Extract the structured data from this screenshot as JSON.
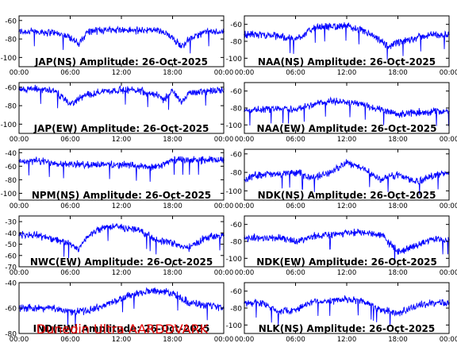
{
  "footer": "Dunedin Ultra AARDDVARK",
  "colors": {
    "trace": "#0000ff",
    "axis": "#000000",
    "footer": "#e00000",
    "background": "#ffffff"
  },
  "chart_data": [
    {
      "type": "line",
      "title": "JAP(NS) Amplitude: 26-Oct-2025",
      "ylim": [
        -110,
        -55
      ],
      "yticks": [
        -100,
        -80,
        -60
      ],
      "xticks": [
        "00:00",
        "06:00",
        "12:00",
        "18:00",
        "00:00"
      ],
      "xrange_hours": [
        0,
        24
      ],
      "series": [
        {
          "x": [
            0,
            2,
            4,
            6,
            7,
            8,
            10,
            12,
            14,
            16,
            18,
            19,
            20,
            22,
            24
          ],
          "y": [
            -72,
            -72,
            -73,
            -78,
            -86,
            -72,
            -70,
            -70,
            -71,
            -70,
            -78,
            -88,
            -80,
            -72,
            -72
          ]
        }
      ]
    },
    {
      "type": "line",
      "title": "NAA(NS) Amplitude: 26-Oct-2025",
      "ylim": [
        -110,
        -50
      ],
      "yticks": [
        -100,
        -80,
        -60
      ],
      "xticks": [
        "00:00",
        "06:00",
        "12:00",
        "18:00",
        "00:00"
      ],
      "xrange_hours": [
        0,
        24
      ],
      "series": [
        {
          "x": [
            0,
            2,
            4,
            6,
            8,
            10,
            12,
            14,
            16,
            17,
            18,
            20,
            22,
            24
          ],
          "y": [
            -72,
            -72,
            -74,
            -78,
            -65,
            -62,
            -62,
            -68,
            -80,
            -86,
            -82,
            -76,
            -72,
            -72
          ]
        }
      ]
    },
    {
      "type": "line",
      "title": "JAP(EW) Amplitude: 26-Oct-2025",
      "ylim": [
        -110,
        -55
      ],
      "yticks": [
        -100,
        -80,
        -60
      ],
      "xticks": [
        "00:00",
        "06:00",
        "12:00",
        "18:00",
        "00:00"
      ],
      "xrange_hours": [
        0,
        24
      ],
      "series": [
        {
          "x": [
            0,
            2,
            4,
            6,
            8,
            10,
            12,
            14,
            16,
            17,
            18,
            19,
            20,
            22,
            24
          ],
          "y": [
            -62,
            -62,
            -63,
            -78,
            -68,
            -64,
            -63,
            -63,
            -68,
            -74,
            -64,
            -76,
            -66,
            -64,
            -62
          ]
        }
      ]
    },
    {
      "type": "line",
      "title": "NAA(EW) Amplitude: 26-Oct-2025",
      "ylim": [
        -110,
        -50
      ],
      "yticks": [
        -100,
        -80,
        -60
      ],
      "xticks": [
        "00:00",
        "06:00",
        "12:00",
        "18:00",
        "00:00"
      ],
      "xrange_hours": [
        0,
        24
      ],
      "series": [
        {
          "x": [
            0,
            2,
            4,
            6,
            8,
            10,
            12,
            14,
            16,
            18,
            20,
            22,
            24
          ],
          "y": [
            -84,
            -82,
            -80,
            -82,
            -76,
            -72,
            -73,
            -76,
            -82,
            -88,
            -85,
            -84,
            -84
          ]
        }
      ]
    },
    {
      "type": "line",
      "title": "NPM(NS) Amplitude: 26-Oct-2025",
      "ylim": [
        -110,
        -35
      ],
      "yticks": [
        -100,
        -80,
        -60,
        -40
      ],
      "xticks": [
        "00:00",
        "06:00",
        "12:00",
        "18:00",
        "00:00"
      ],
      "xrange_hours": [
        0,
        24
      ],
      "series": [
        {
          "x": [
            0,
            2,
            4,
            6,
            8,
            10,
            12,
            14,
            16,
            17,
            18,
            20,
            22,
            24
          ],
          "y": [
            -52,
            -52,
            -55,
            -57,
            -58,
            -57,
            -58,
            -60,
            -62,
            -57,
            -51,
            -51,
            -51,
            -51
          ]
        }
      ]
    },
    {
      "type": "line",
      "title": "NDK(NS) Amplitude: 26-Oct-2025",
      "ylim": [
        -110,
        -55
      ],
      "yticks": [
        -100,
        -80,
        -60
      ],
      "xticks": [
        "00:00",
        "06:00",
        "12:00",
        "18:00",
        "00:00"
      ],
      "xrange_hours": [
        0,
        24
      ],
      "series": [
        {
          "x": [
            0,
            1,
            2,
            4,
            6,
            8,
            10,
            12,
            14,
            16,
            18,
            20,
            22,
            24
          ],
          "y": [
            -88,
            -84,
            -82,
            -82,
            -80,
            -86,
            -80,
            -70,
            -76,
            -88,
            -82,
            -90,
            -84,
            -80
          ]
        }
      ]
    },
    {
      "type": "line",
      "title": "NWC(EW) Amplitude: 26-Oct-2025",
      "ylim": [
        -70,
        -25
      ],
      "yticks": [
        -70,
        -60,
        -50,
        -40,
        -30
      ],
      "xticks": [
        "00:00",
        "06:00",
        "12:00",
        "18:00",
        "00:00"
      ],
      "xrange_hours": [
        0,
        24
      ],
      "series": [
        {
          "x": [
            0,
            2,
            4,
            6,
            7,
            8,
            10,
            12,
            14,
            16,
            18,
            19,
            20,
            22,
            24
          ],
          "y": [
            -42,
            -42,
            -45,
            -50,
            -55,
            -43,
            -34,
            -35,
            -37,
            -46,
            -49,
            -52,
            -53,
            -44,
            -42
          ]
        }
      ]
    },
    {
      "type": "line",
      "title": "NDK(EW) Amplitude: 26-Oct-2025",
      "ylim": [
        -110,
        -50
      ],
      "yticks": [
        -100,
        -80,
        -60
      ],
      "xticks": [
        "00:00",
        "06:00",
        "12:00",
        "18:00",
        "00:00"
      ],
      "xrange_hours": [
        0,
        24
      ],
      "series": [
        {
          "x": [
            0,
            2,
            4,
            6,
            8,
            10,
            12,
            14,
            16,
            18,
            20,
            22,
            24
          ],
          "y": [
            -76,
            -76,
            -76,
            -80,
            -74,
            -72,
            -70,
            -70,
            -72,
            -92,
            -86,
            -78,
            -78
          ]
        }
      ]
    },
    {
      "type": "line",
      "title": "IND(EW) Amplitude: 26-Oct-2025",
      "ylim": [
        -80,
        -40
      ],
      "yticks": [
        -80,
        -60,
        -40
      ],
      "xticks": [
        "00:00",
        "06:00",
        "12:00",
        "18:00",
        "00:00"
      ],
      "xrange_hours": [
        0,
        24
      ],
      "series": [
        {
          "x": [
            0,
            2,
            4,
            6,
            8,
            10,
            12,
            14,
            16,
            18,
            20,
            22,
            24
          ],
          "y": [
            -60,
            -60,
            -60,
            -63,
            -62,
            -58,
            -52,
            -48,
            -46,
            -48,
            -56,
            -58,
            -60
          ]
        }
      ]
    },
    {
      "type": "line",
      "title": "NLK(NS) Amplitude: 26-Oct-2025",
      "ylim": [
        -110,
        -50
      ],
      "yticks": [
        -100,
        -80,
        -60
      ],
      "xticks": [
        "00:00",
        "06:00",
        "12:00",
        "18:00",
        "00:00"
      ],
      "xrange_hours": [
        0,
        24
      ],
      "series": [
        {
          "x": [
            0,
            2,
            4,
            6,
            8,
            10,
            12,
            14,
            16,
            18,
            20,
            22,
            24
          ],
          "y": [
            -74,
            -74,
            -84,
            -82,
            -72,
            -72,
            -70,
            -72,
            -82,
            -86,
            -78,
            -74,
            -74
          ]
        }
      ]
    }
  ]
}
